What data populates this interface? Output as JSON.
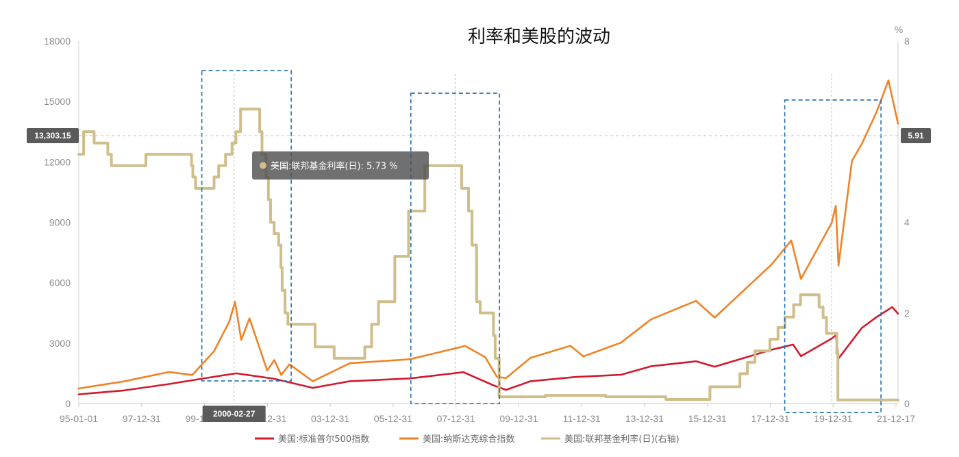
{
  "chart_data": {
    "type": "line",
    "title": "利率和美股的波动",
    "y_right_unit": "%",
    "x_tick_labels": [
      "95-01-01",
      "97-12-31",
      "99-12-31",
      "01-12-31",
      "03-12-31",
      "05-12-31",
      "07-12-31",
      "09-12-31",
      "11-12-31",
      "13-12-31",
      "15-12-31",
      "17-12-31",
      "19-12-31",
      "21-12-17"
    ],
    "xlim": [
      "1995-01-01",
      "2022-03-15"
    ],
    "y_left": {
      "ticks": [
        0,
        3000,
        6000,
        9000,
        12000,
        15000,
        18000
      ],
      "ylim": [
        0,
        18000
      ]
    },
    "y_right": {
      "ticks": [
        0,
        2,
        4,
        6,
        8
      ],
      "ylim": [
        0,
        8
      ]
    },
    "grid": "dashed horizontal on pointer",
    "legend_position": "bottom",
    "series": [
      {
        "name": "美国:标准普尔500指数",
        "axis": "left",
        "color": "#d2192d",
        "points": [
          [
            "1995-01-01",
            460
          ],
          [
            "1996-06-30",
            650
          ],
          [
            "1997-12-31",
            970
          ],
          [
            "1999-06-30",
            1330
          ],
          [
            "2000-03-24",
            1500
          ],
          [
            "2001-06-30",
            1230
          ],
          [
            "2002-10-09",
            780
          ],
          [
            "2003-12-31",
            1110
          ],
          [
            "2005-12-31",
            1250
          ],
          [
            "2007-10-09",
            1560
          ],
          [
            "2008-10-10",
            900
          ],
          [
            "2009-03-09",
            680
          ],
          [
            "2009-12-31",
            1110
          ],
          [
            "2011-06-30",
            1320
          ],
          [
            "2012-12-31",
            1430
          ],
          [
            "2013-12-31",
            1850
          ],
          [
            "2015-06-30",
            2100
          ],
          [
            "2016-02-11",
            1830
          ],
          [
            "2017-12-31",
            2670
          ],
          [
            "2018-09-20",
            2930
          ],
          [
            "2018-12-24",
            2350
          ],
          [
            "2019-12-31",
            3230
          ],
          [
            "2020-02-19",
            3390
          ],
          [
            "2020-03-23",
            2240
          ],
          [
            "2020-12-31",
            3760
          ],
          [
            "2021-06-30",
            4300
          ],
          [
            "2022-01-03",
            4790
          ],
          [
            "2022-03-15",
            4460
          ]
        ]
      },
      {
        "name": "美国:纳斯达克综合指数",
        "axis": "left",
        "color": "#f08224",
        "points": [
          [
            "1995-01-01",
            750
          ],
          [
            "1996-06-30",
            1100
          ],
          [
            "1997-12-31",
            1570
          ],
          [
            "1998-10-08",
            1420
          ],
          [
            "1999-06-30",
            2600
          ],
          [
            "1999-12-31",
            4070
          ],
          [
            "2000-03-10",
            5050
          ],
          [
            "2000-05-24",
            3160
          ],
          [
            "2000-09-01",
            4230
          ],
          [
            "2001-04-04",
            1640
          ],
          [
            "2001-06-30",
            2160
          ],
          [
            "2001-09-21",
            1420
          ],
          [
            "2001-12-31",
            1950
          ],
          [
            "2002-10-09",
            1110
          ],
          [
            "2003-12-31",
            2000
          ],
          [
            "2005-12-31",
            2200
          ],
          [
            "2007-10-31",
            2860
          ],
          [
            "2008-06-30",
            2300
          ],
          [
            "2008-11-20",
            1320
          ],
          [
            "2009-03-09",
            1270
          ],
          [
            "2009-12-31",
            2270
          ],
          [
            "2011-04-29",
            2870
          ],
          [
            "2011-10-03",
            2340
          ],
          [
            "2012-12-31",
            3020
          ],
          [
            "2013-12-31",
            4180
          ],
          [
            "2015-06-30",
            5100
          ],
          [
            "2016-02-11",
            4270
          ],
          [
            "2017-12-31",
            6900
          ],
          [
            "2018-08-29",
            8100
          ],
          [
            "2018-12-24",
            6190
          ],
          [
            "2019-12-31",
            8970
          ],
          [
            "2020-02-19",
            9820
          ],
          [
            "2020-03-23",
            6860
          ],
          [
            "2020-09-02",
            12050
          ],
          [
            "2020-12-31",
            12900
          ],
          [
            "2021-06-30",
            14500
          ],
          [
            "2021-11-19",
            16050
          ],
          [
            "2022-03-15",
            13900
          ]
        ]
      },
      {
        "name": "美国:联邦基金利率(日)(右轴)",
        "axis": "right",
        "color": "#cfbe8a",
        "points": [
          [
            "1995-01-01",
            5.5
          ],
          [
            "1995-03-01",
            6.0
          ],
          [
            "1995-07-06",
            5.75
          ],
          [
            "1995-12-19",
            5.5
          ],
          [
            "1996-01-31",
            5.25
          ],
          [
            "1997-03-25",
            5.5
          ],
          [
            "1998-09-29",
            5.25
          ],
          [
            "1998-10-15",
            5.0
          ],
          [
            "1998-11-17",
            4.75
          ],
          [
            "1999-06-30",
            5.0
          ],
          [
            "1999-08-24",
            5.25
          ],
          [
            "1999-11-16",
            5.5
          ],
          [
            "2000-02-02",
            5.75
          ],
          [
            "2000-03-21",
            6.0
          ],
          [
            "2000-05-16",
            6.5
          ],
          [
            "2001-01-03",
            6.0
          ],
          [
            "2001-01-31",
            5.5
          ],
          [
            "2001-03-20",
            5.0
          ],
          [
            "2001-04-18",
            4.5
          ],
          [
            "2001-05-15",
            4.0
          ],
          [
            "2001-06-27",
            3.75
          ],
          [
            "2001-08-21",
            3.5
          ],
          [
            "2001-09-17",
            3.0
          ],
          [
            "2001-10-02",
            2.5
          ],
          [
            "2001-11-06",
            2.0
          ],
          [
            "2001-12-11",
            1.75
          ],
          [
            "2002-11-06",
            1.25
          ],
          [
            "2003-06-25",
            1.0
          ],
          [
            "2004-06-30",
            1.25
          ],
          [
            "2004-09-21",
            1.75
          ],
          [
            "2004-12-14",
            2.25
          ],
          [
            "2005-06-30",
            3.25
          ],
          [
            "2005-12-13",
            4.25
          ],
          [
            "2006-06-29",
            5.25
          ],
          [
            "2007-09-18",
            4.75
          ],
          [
            "2007-12-11",
            4.25
          ],
          [
            "2008-01-22",
            3.5
          ],
          [
            "2008-03-18",
            2.25
          ],
          [
            "2008-04-30",
            2.0
          ],
          [
            "2008-10-08",
            1.5
          ],
          [
            "2008-10-29",
            1.0
          ],
          [
            "2008-12-16",
            0.15
          ],
          [
            "2010-06-30",
            0.18
          ],
          [
            "2012-06-30",
            0.15
          ],
          [
            "2014-06-30",
            0.09
          ],
          [
            "2015-12-16",
            0.37
          ],
          [
            "2016-12-14",
            0.66
          ],
          [
            "2017-03-15",
            0.91
          ],
          [
            "2017-06-14",
            1.16
          ],
          [
            "2017-12-13",
            1.42
          ],
          [
            "2018-03-21",
            1.68
          ],
          [
            "2018-06-13",
            1.91
          ],
          [
            "2018-09-26",
            2.18
          ],
          [
            "2018-12-19",
            2.4
          ],
          [
            "2019-07-31",
            2.13
          ],
          [
            "2019-09-18",
            1.9
          ],
          [
            "2019-10-30",
            1.55
          ],
          [
            "2020-03-03",
            1.1
          ],
          [
            "2020-03-16",
            0.08
          ],
          [
            "2021-06-30",
            0.08
          ],
          [
            "2022-03-15",
            0.08
          ]
        ]
      }
    ],
    "pointer": {
      "x_label": "2000-02-27",
      "left_value_label": "13,303.15",
      "right_value_label": "5.91",
      "tooltip": "美国:联邦基金利率(日): 5.73 %"
    },
    "annotation_boxes": [
      {
        "x_from": "1999-02-01",
        "x_to": "2002-01-20",
        "y_from": 0.5,
        "y_to": 7.35,
        "axis": "right"
      },
      {
        "x_from": "2006-01-10",
        "x_to": "2008-12-20",
        "y_from": 0,
        "y_to": 6.85,
        "axis": "right"
      },
      {
        "x_from": "2018-06-10",
        "x_to": "2021-08-20",
        "y_from": -0.2,
        "y_to": 6.7,
        "axis": "right"
      }
    ],
    "vertical_guides": [
      "2000-02-27",
      "2007-06-30",
      "2019-12-31"
    ]
  }
}
